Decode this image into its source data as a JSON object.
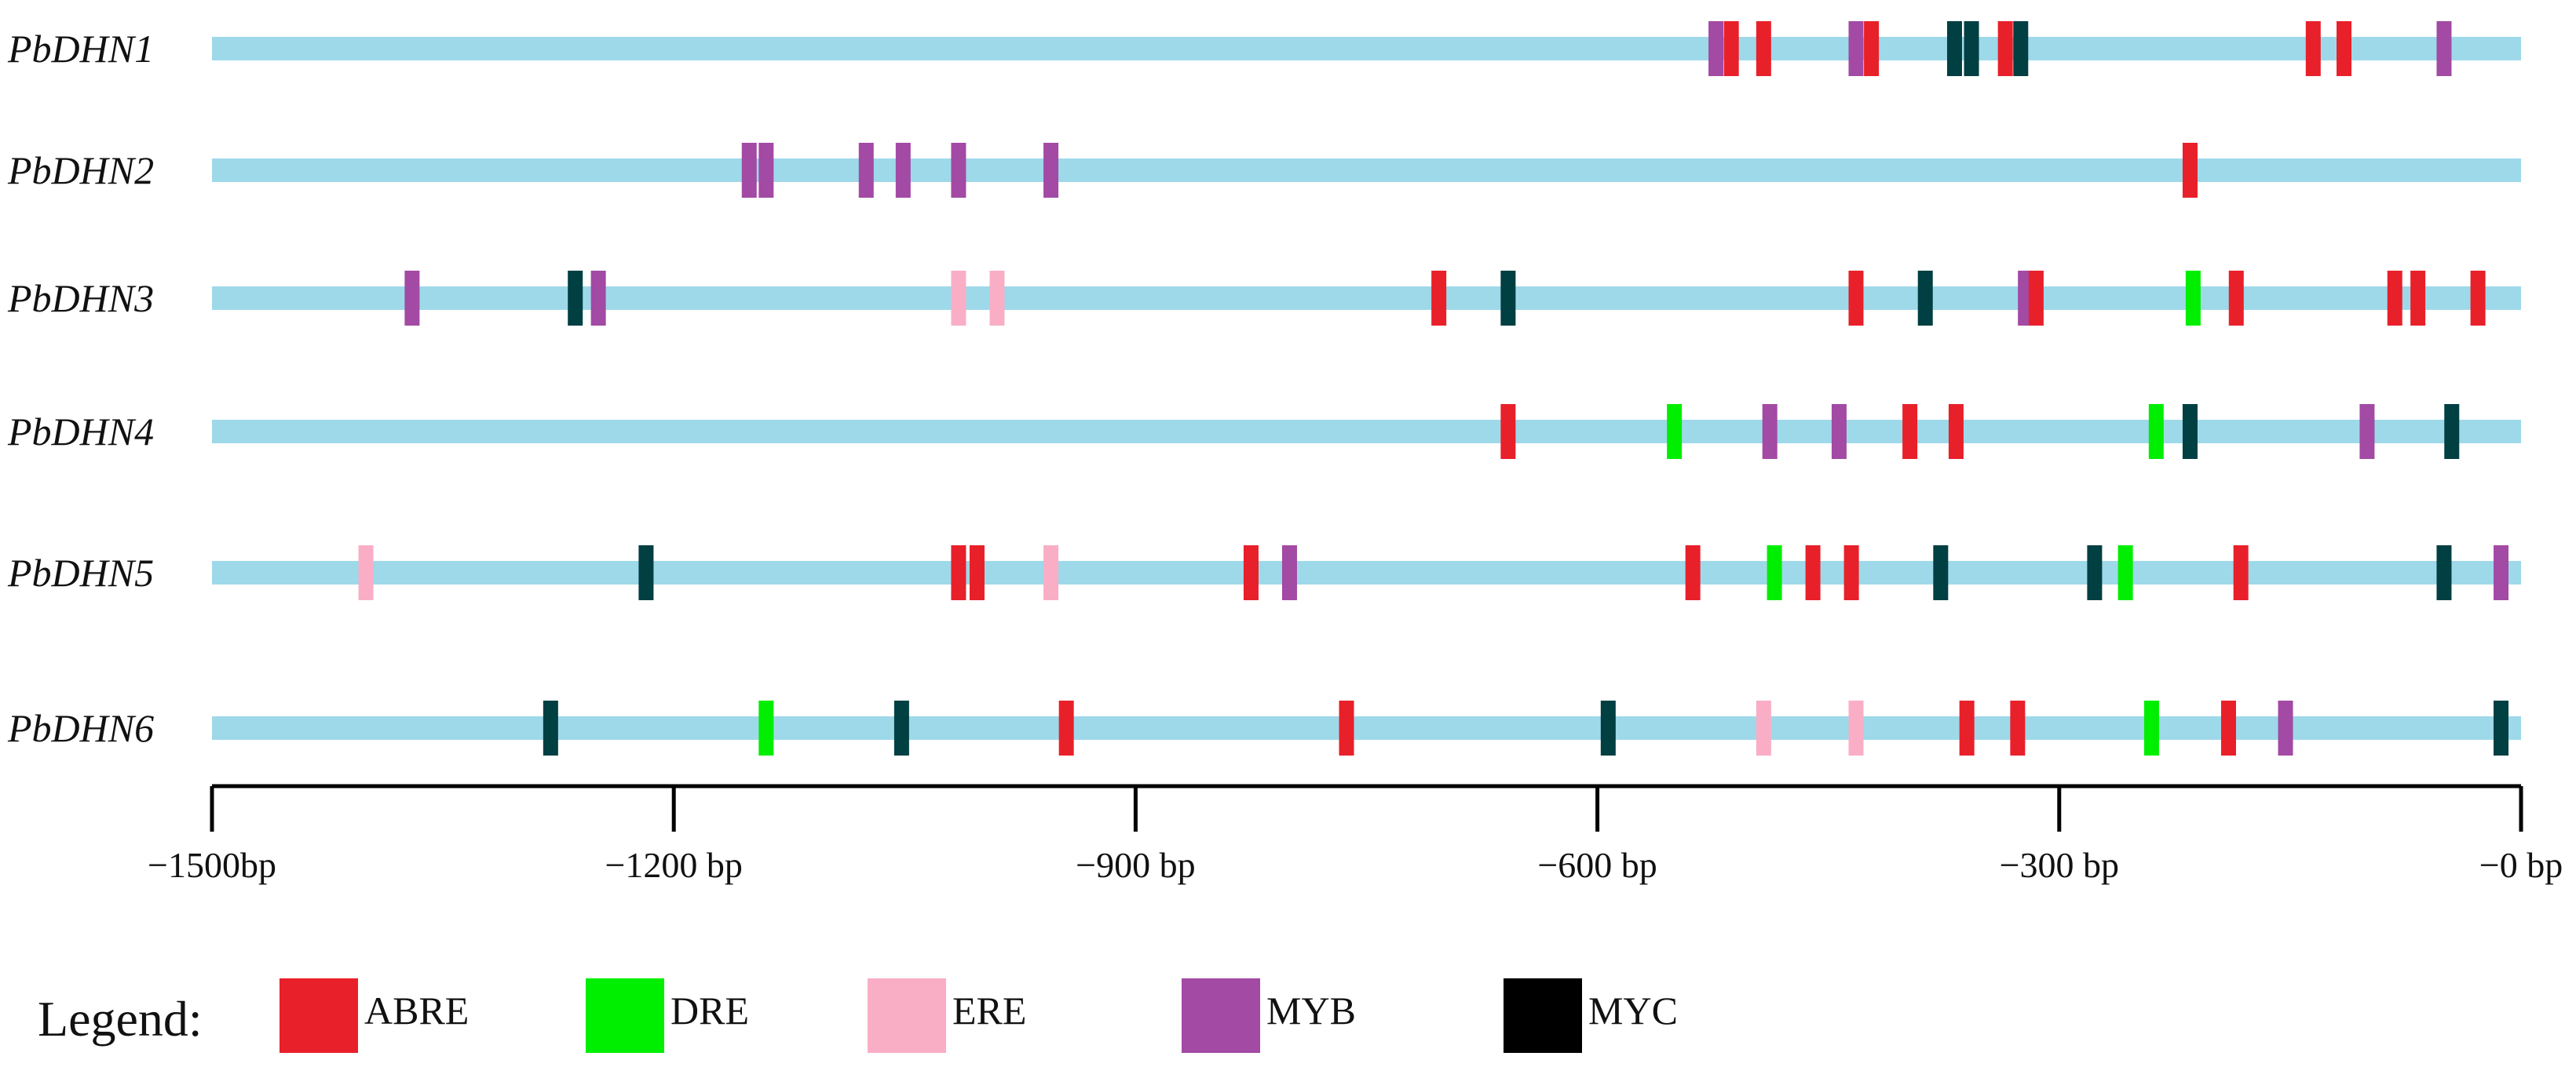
{
  "chart_data": {
    "type": "promoter-element-map",
    "axis": {
      "min": -1500,
      "max": 0,
      "ticks": [
        {
          "value": -1500,
          "label": "−1500bp"
        },
        {
          "value": -1200,
          "label": "−1200 bp"
        },
        {
          "value": -900,
          "label": "−900 bp"
        },
        {
          "value": -600,
          "label": "−600 bp"
        },
        {
          "value": -300,
          "label": "−300 bp"
        },
        {
          "value": 0,
          "label": "−0 bp"
        }
      ]
    },
    "bar_color": "#9ed9ea",
    "element_types": [
      {
        "key": "ABRE",
        "label": "ABRE",
        "color": "#e8202a"
      },
      {
        "key": "DRE",
        "label": "DRE",
        "color": "#00ee00"
      },
      {
        "key": "ERE",
        "label": "ERE",
        "color": "#f9aec6"
      },
      {
        "key": "MYB",
        "label": "MYB",
        "color": "#a24aa4"
      },
      {
        "key": "MYC",
        "label": "MYC",
        "color": "#003f42"
      }
    ],
    "legend_color_MYC": "#000000",
    "legend_title": "Legend:",
    "genes": [
      {
        "name": "PbDHN1",
        "elements": [
          {
            "type": "MYB",
            "pos": -523
          },
          {
            "type": "ABRE",
            "pos": -513
          },
          {
            "type": "ABRE",
            "pos": -492
          },
          {
            "type": "MYB",
            "pos": -432
          },
          {
            "type": "ABRE",
            "pos": -422
          },
          {
            "type": "MYC",
            "pos": -368
          },
          {
            "type": "MYC",
            "pos": -357
          },
          {
            "type": "ABRE",
            "pos": -335
          },
          {
            "type": "MYC",
            "pos": -325
          },
          {
            "type": "ABRE",
            "pos": -135
          },
          {
            "type": "ABRE",
            "pos": -115
          },
          {
            "type": "MYB",
            "pos": -50
          }
        ]
      },
      {
        "name": "PbDHN2",
        "elements": [
          {
            "type": "MYB",
            "pos": -1151
          },
          {
            "type": "MYB",
            "pos": -1140
          },
          {
            "type": "MYB",
            "pos": -1075
          },
          {
            "type": "MYB",
            "pos": -1051
          },
          {
            "type": "MYB",
            "pos": -1015
          },
          {
            "type": "MYB",
            "pos": -955
          },
          {
            "type": "ABRE",
            "pos": -215
          }
        ]
      },
      {
        "name": "PbDHN3",
        "elements": [
          {
            "type": "MYB",
            "pos": -1370
          },
          {
            "type": "MYC",
            "pos": -1264
          },
          {
            "type": "MYB",
            "pos": -1249
          },
          {
            "type": "ERE",
            "pos": -1015
          },
          {
            "type": "ERE",
            "pos": -990
          },
          {
            "type": "ABRE",
            "pos": -703
          },
          {
            "type": "MYC",
            "pos": -658
          },
          {
            "type": "ABRE",
            "pos": -432
          },
          {
            "type": "MYC",
            "pos": -387
          },
          {
            "type": "MYB",
            "pos": -322
          },
          {
            "type": "ABRE",
            "pos": -315
          },
          {
            "type": "DRE",
            "pos": -213
          },
          {
            "type": "ABRE",
            "pos": -185
          },
          {
            "type": "ABRE",
            "pos": -82
          },
          {
            "type": "ABRE",
            "pos": -67
          },
          {
            "type": "ABRE",
            "pos": -28
          }
        ]
      },
      {
        "name": "PbDHN4",
        "elements": [
          {
            "type": "ABRE",
            "pos": -658
          },
          {
            "type": "DRE",
            "pos": -550
          },
          {
            "type": "MYB",
            "pos": -488
          },
          {
            "type": "MYB",
            "pos": -443
          },
          {
            "type": "ABRE",
            "pos": -397
          },
          {
            "type": "ABRE",
            "pos": -367
          },
          {
            "type": "DRE",
            "pos": -237
          },
          {
            "type": "MYC",
            "pos": -215
          },
          {
            "type": "MYB",
            "pos": -100
          },
          {
            "type": "MYC",
            "pos": -45
          }
        ]
      },
      {
        "name": "PbDHN5",
        "elements": [
          {
            "type": "ERE",
            "pos": -1400
          },
          {
            "type": "MYC",
            "pos": -1218
          },
          {
            "type": "ABRE",
            "pos": -1015
          },
          {
            "type": "ABRE",
            "pos": -1003
          },
          {
            "type": "ERE",
            "pos": -955
          },
          {
            "type": "ABRE",
            "pos": -825
          },
          {
            "type": "MYB",
            "pos": -800
          },
          {
            "type": "ABRE",
            "pos": -538
          },
          {
            "type": "DRE",
            "pos": -485
          },
          {
            "type": "ABRE",
            "pos": -460
          },
          {
            "type": "ABRE",
            "pos": -435
          },
          {
            "type": "MYC",
            "pos": -377
          },
          {
            "type": "MYC",
            "pos": -277
          },
          {
            "type": "DRE",
            "pos": -257
          },
          {
            "type": "ABRE",
            "pos": -182
          },
          {
            "type": "MYC",
            "pos": -50
          },
          {
            "type": "MYB",
            "pos": -13
          }
        ]
      },
      {
        "name": "PbDHN6",
        "elements": [
          {
            "type": "MYC",
            "pos": -1280
          },
          {
            "type": "DRE",
            "pos": -1140
          },
          {
            "type": "MYC",
            "pos": -1052
          },
          {
            "type": "ABRE",
            "pos": -945
          },
          {
            "type": "ABRE",
            "pos": -763
          },
          {
            "type": "MYC",
            "pos": -593
          },
          {
            "type": "ERE",
            "pos": -492
          },
          {
            "type": "ERE",
            "pos": -432
          },
          {
            "type": "ABRE",
            "pos": -360
          },
          {
            "type": "ABRE",
            "pos": -327
          },
          {
            "type": "DRE",
            "pos": -240
          },
          {
            "type": "ABRE",
            "pos": -190
          },
          {
            "type": "MYB",
            "pos": -153
          },
          {
            "type": "MYC",
            "pos": -13
          }
        ]
      }
    ]
  }
}
